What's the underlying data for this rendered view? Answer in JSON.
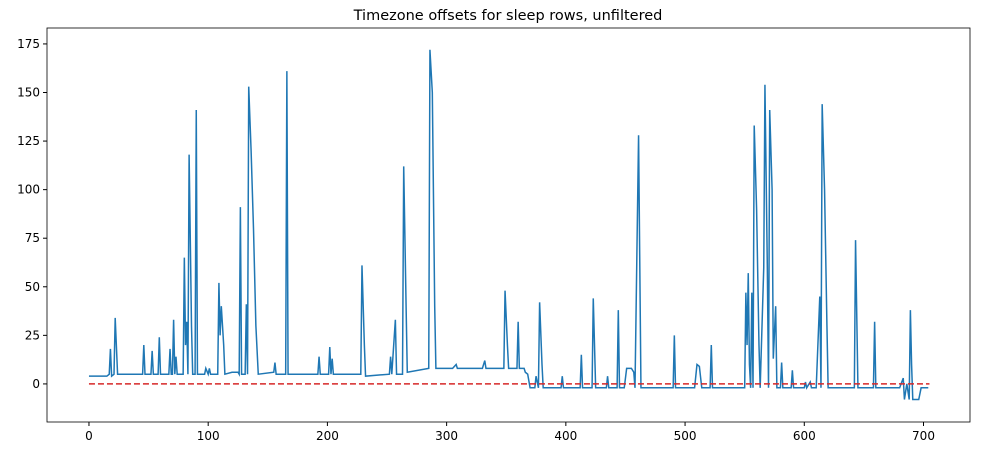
{
  "chart_data": {
    "type": "line",
    "title": "Timezone offsets for sleep rows, unfiltered",
    "xlim": [
      -35.2,
      739
    ],
    "ylim": [
      -19.6,
      183.2
    ],
    "xticks": [
      0,
      100,
      200,
      300,
      400,
      500,
      600,
      700
    ],
    "yticks": [
      0,
      25,
      50,
      75,
      100,
      125,
      150,
      175
    ],
    "series": [
      {
        "color": "#1f77b4",
        "dash": false,
        "x": [
          0,
          15,
          17,
          18,
          19,
          21,
          22,
          24,
          45,
          46,
          47,
          52,
          53,
          54,
          58,
          59,
          60,
          67,
          68,
          69,
          70,
          71,
          72,
          73,
          74,
          79,
          80,
          81,
          82,
          83,
          84,
          86,
          87,
          89,
          90,
          91,
          97,
          98,
          100,
          101,
          102,
          108,
          109,
          110,
          111,
          113,
          114,
          120,
          125,
          126,
          127,
          128,
          131,
          132,
          133,
          134,
          136,
          138,
          140,
          142,
          155,
          156,
          157,
          165,
          166,
          167,
          192,
          193,
          194,
          201,
          202,
          203,
          204,
          205,
          228,
          229,
          231,
          232,
          252,
          253,
          254,
          257,
          258,
          263,
          264,
          266,
          267,
          285,
          286,
          288,
          290,
          291,
          305,
          308,
          309,
          330,
          332,
          333,
          348,
          349,
          351,
          352,
          359,
          360,
          361,
          365,
          366,
          368,
          370,
          374,
          375,
          377,
          378,
          380,
          381,
          396,
          397,
          398,
          412,
          413,
          414,
          422,
          423,
          425,
          434,
          435,
          436,
          443,
          444,
          445,
          449,
          451,
          455,
          457,
          458,
          461,
          463,
          490,
          491,
          492,
          508,
          510,
          512,
          514,
          521,
          522,
          523,
          550,
          551,
          552,
          553,
          554,
          555,
          556,
          557,
          558,
          560,
          562,
          563,
          566,
          567,
          569,
          570,
          571,
          573,
          574,
          576,
          577,
          580,
          581,
          582,
          589,
          590,
          591,
          600,
          601,
          602,
          605,
          606,
          610,
          613,
          614,
          615,
          617,
          619,
          620,
          642,
          643,
          645,
          658,
          659,
          660,
          680,
          683,
          684,
          686,
          688,
          689,
          690,
          691,
          696,
          698,
          704
        ],
        "values": [
          4,
          4,
          5,
          18,
          4,
          5,
          34,
          5,
          5,
          20,
          5,
          5,
          17,
          5,
          5,
          24,
          5,
          5,
          18,
          5,
          5,
          33,
          5,
          14,
          5,
          5,
          65,
          20,
          32,
          5,
          118,
          30,
          5,
          5,
          141,
          5,
          5,
          8,
          5,
          8,
          5,
          5,
          52,
          25,
          40,
          20,
          5,
          6,
          6,
          5,
          91,
          5,
          5,
          41,
          5,
          153,
          120,
          80,
          30,
          5,
          6,
          11,
          5,
          5,
          161,
          5,
          5,
          14,
          5,
          5,
          19,
          5,
          13,
          5,
          5,
          61,
          20,
          4,
          5,
          14,
          5,
          33,
          5,
          5,
          112,
          40,
          6,
          8,
          172,
          150,
          40,
          8,
          8,
          10,
          8,
          8,
          12,
          8,
          8,
          48,
          20,
          8,
          8,
          32,
          8,
          8,
          6,
          5,
          -2,
          -2,
          4,
          -2,
          42,
          10,
          -2,
          -2,
          4,
          -2,
          -2,
          15,
          -2,
          -2,
          44,
          -2,
          -2,
          4,
          -2,
          -2,
          38,
          -2,
          -2,
          8,
          8,
          6,
          -2,
          128,
          -2,
          -2,
          25,
          -2,
          -2,
          10,
          9,
          -2,
          -2,
          20,
          -2,
          -2,
          47,
          20,
          57,
          10,
          -2,
          47,
          -2,
          133,
          90,
          20,
          -2,
          60,
          154,
          60,
          -2,
          141,
          100,
          13,
          40,
          -2,
          -2,
          11,
          -2,
          -2,
          7,
          -2,
          -2,
          1,
          -2,
          1,
          -2,
          -2,
          45,
          -2,
          144,
          100,
          30,
          -2,
          -2,
          74,
          -2,
          -2,
          32,
          -2,
          -2,
          3,
          -8,
          0,
          -8,
          38,
          10,
          -8,
          -8,
          -2,
          -2
        ]
      },
      {
        "color": "#d62728",
        "dash": true,
        "x": [
          0,
          705
        ],
        "values": [
          0,
          0
        ]
      }
    ]
  }
}
